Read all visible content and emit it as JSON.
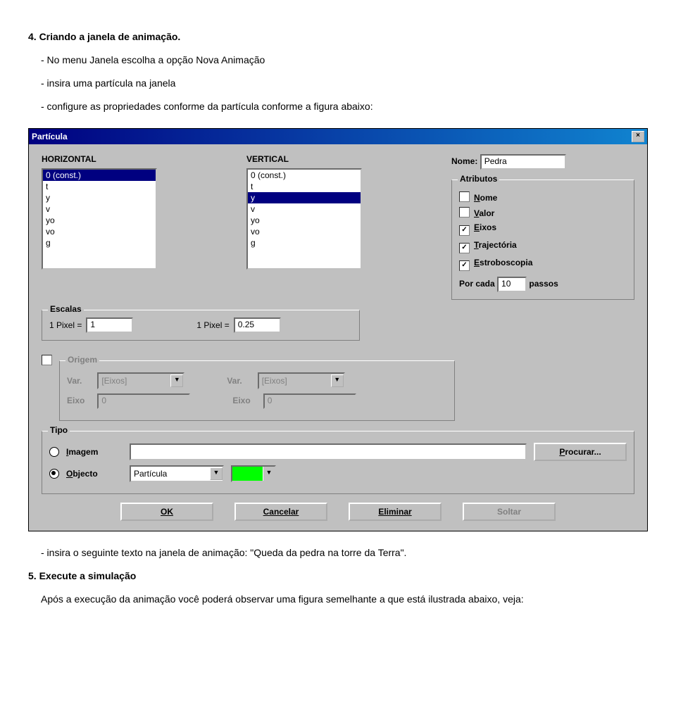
{
  "doc": {
    "sec4": "4. Criando a janela de animação.",
    "b1": "- No menu Janela escolha a opção Nova Animação",
    "b2": "- insira uma partícula na janela",
    "b3": "- configure as propriedades conforme da partícula conforme a figura abaixo:",
    "after1": "- insira o seguinte texto na janela de animação: \"Queda da pedra na torre da Terra\".",
    "sec5": "5. Execute a simulação",
    "p5": "Após a execução da animação você poderá observar uma figura semelhante a que está ilustrada abaixo, veja:"
  },
  "win": {
    "title": "Partícula",
    "hlabel": "HORIZONTAL",
    "vlabel": "VERTICAL",
    "hitems": [
      "0 (const.)",
      "t",
      "y",
      "v",
      "yo",
      "vo",
      "g"
    ],
    "vitems": [
      "0 (const.)",
      "t",
      "y",
      "v",
      "yo",
      "vo",
      "g"
    ],
    "hsel": 0,
    "vsel": 2,
    "nomelbl": "Nome:",
    "nome": "Pedra",
    "atributos": "Atributos",
    "attrs": [
      {
        "label": "Nome",
        "checked": false,
        "u": "N"
      },
      {
        "label": "Valor",
        "checked": false,
        "u": "V"
      },
      {
        "label": "Eixos",
        "checked": true,
        "u": "E"
      },
      {
        "label": "Trajectória",
        "checked": true,
        "u": "T"
      },
      {
        "label": "Estroboscopia",
        "checked": true,
        "u": "E"
      }
    ],
    "porcada": "Por cada",
    "passos": "passos",
    "passosval": "10",
    "escalas": "Escalas",
    "pixel": "1 Pixel =",
    "pxh": "1",
    "pxv": "0.25",
    "origem": "Origem",
    "var": "Var.",
    "eixo": "Eixo",
    "eixosph": "[Eixos]",
    "eixoval": "0",
    "tipo": "Tipo",
    "imagem": "Imagem",
    "objecto": "Objecto",
    "particula": "Partícula",
    "procurar": "Procurar...",
    "ok": "OK",
    "cancelar": "Cancelar",
    "eliminar": "Eliminar",
    "soltar": "Soltar",
    "colors": {
      "swatch": "#00ff00"
    }
  }
}
